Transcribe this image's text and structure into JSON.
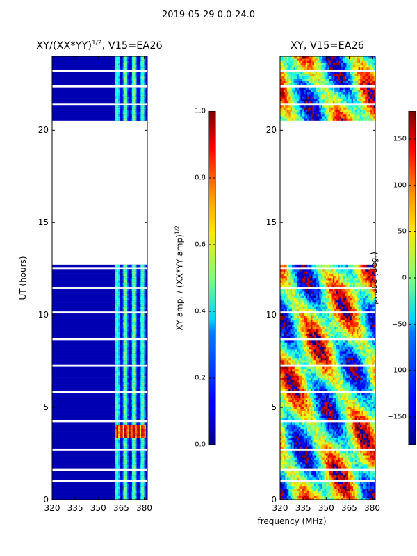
{
  "figure": {
    "suptitle": "2019-05-29 0.0-24.0",
    "shared_xlabel": "frequency (MHz)"
  },
  "chart_data": [
    {
      "type": "heatmap",
      "title": "XY/(XX*YY)^1/2, V15=EA26",
      "title_main": "XY/(XX*YY)",
      "title_sup": "1/2",
      "title_tail": ", V15=EA26",
      "xlabel": "frequency (MHz)",
      "ylabel": "UT (hours)",
      "xlim": [
        320,
        382
      ],
      "ylim": [
        0,
        24
      ],
      "xticks": [
        320,
        335,
        350,
        365,
        380
      ],
      "yticks": [
        0,
        5,
        10,
        15,
        20
      ],
      "colorbar": {
        "label": "XY amp. / (XX*YY amp)^1/2",
        "label_main": "XY amp. / (XX*YY amp)",
        "label_sup": "1/2",
        "range": [
          0.0,
          1.0
        ],
        "ticks": [
          "0.0",
          "0.2",
          "0.4",
          "0.6",
          "0.8",
          "1.0"
        ]
      },
      "description_values": {
        "data_time_ranges_hours": [
          [
            0,
            12.7
          ],
          [
            20.5,
            24
          ]
        ],
        "background_amplitude": 0.05,
        "active_channel_band_mhz": [
          361,
          381
        ],
        "peak_amplitude_hours": [
          3.4,
          4.1
        ]
      }
    },
    {
      "type": "heatmap",
      "title": "XY, V15=EA26",
      "xlabel": "frequency (MHz)",
      "ylabel": "",
      "xlim": [
        320,
        382
      ],
      "ylim": [
        0,
        24
      ],
      "xticks": [
        320,
        335,
        350,
        365,
        380
      ],
      "yticks": [
        0,
        5,
        10,
        15,
        20
      ],
      "colorbar": {
        "label": "phase (deg.)",
        "range": [
          -180,
          180
        ],
        "ticks": [
          "−150",
          "−100",
          "−50",
          "0",
          "50",
          "100",
          "150"
        ]
      },
      "description_values": {
        "data_time_ranges_hours": [
          [
            0,
            12.7
          ],
          [
            20.5,
            24
          ]
        ]
      }
    }
  ]
}
